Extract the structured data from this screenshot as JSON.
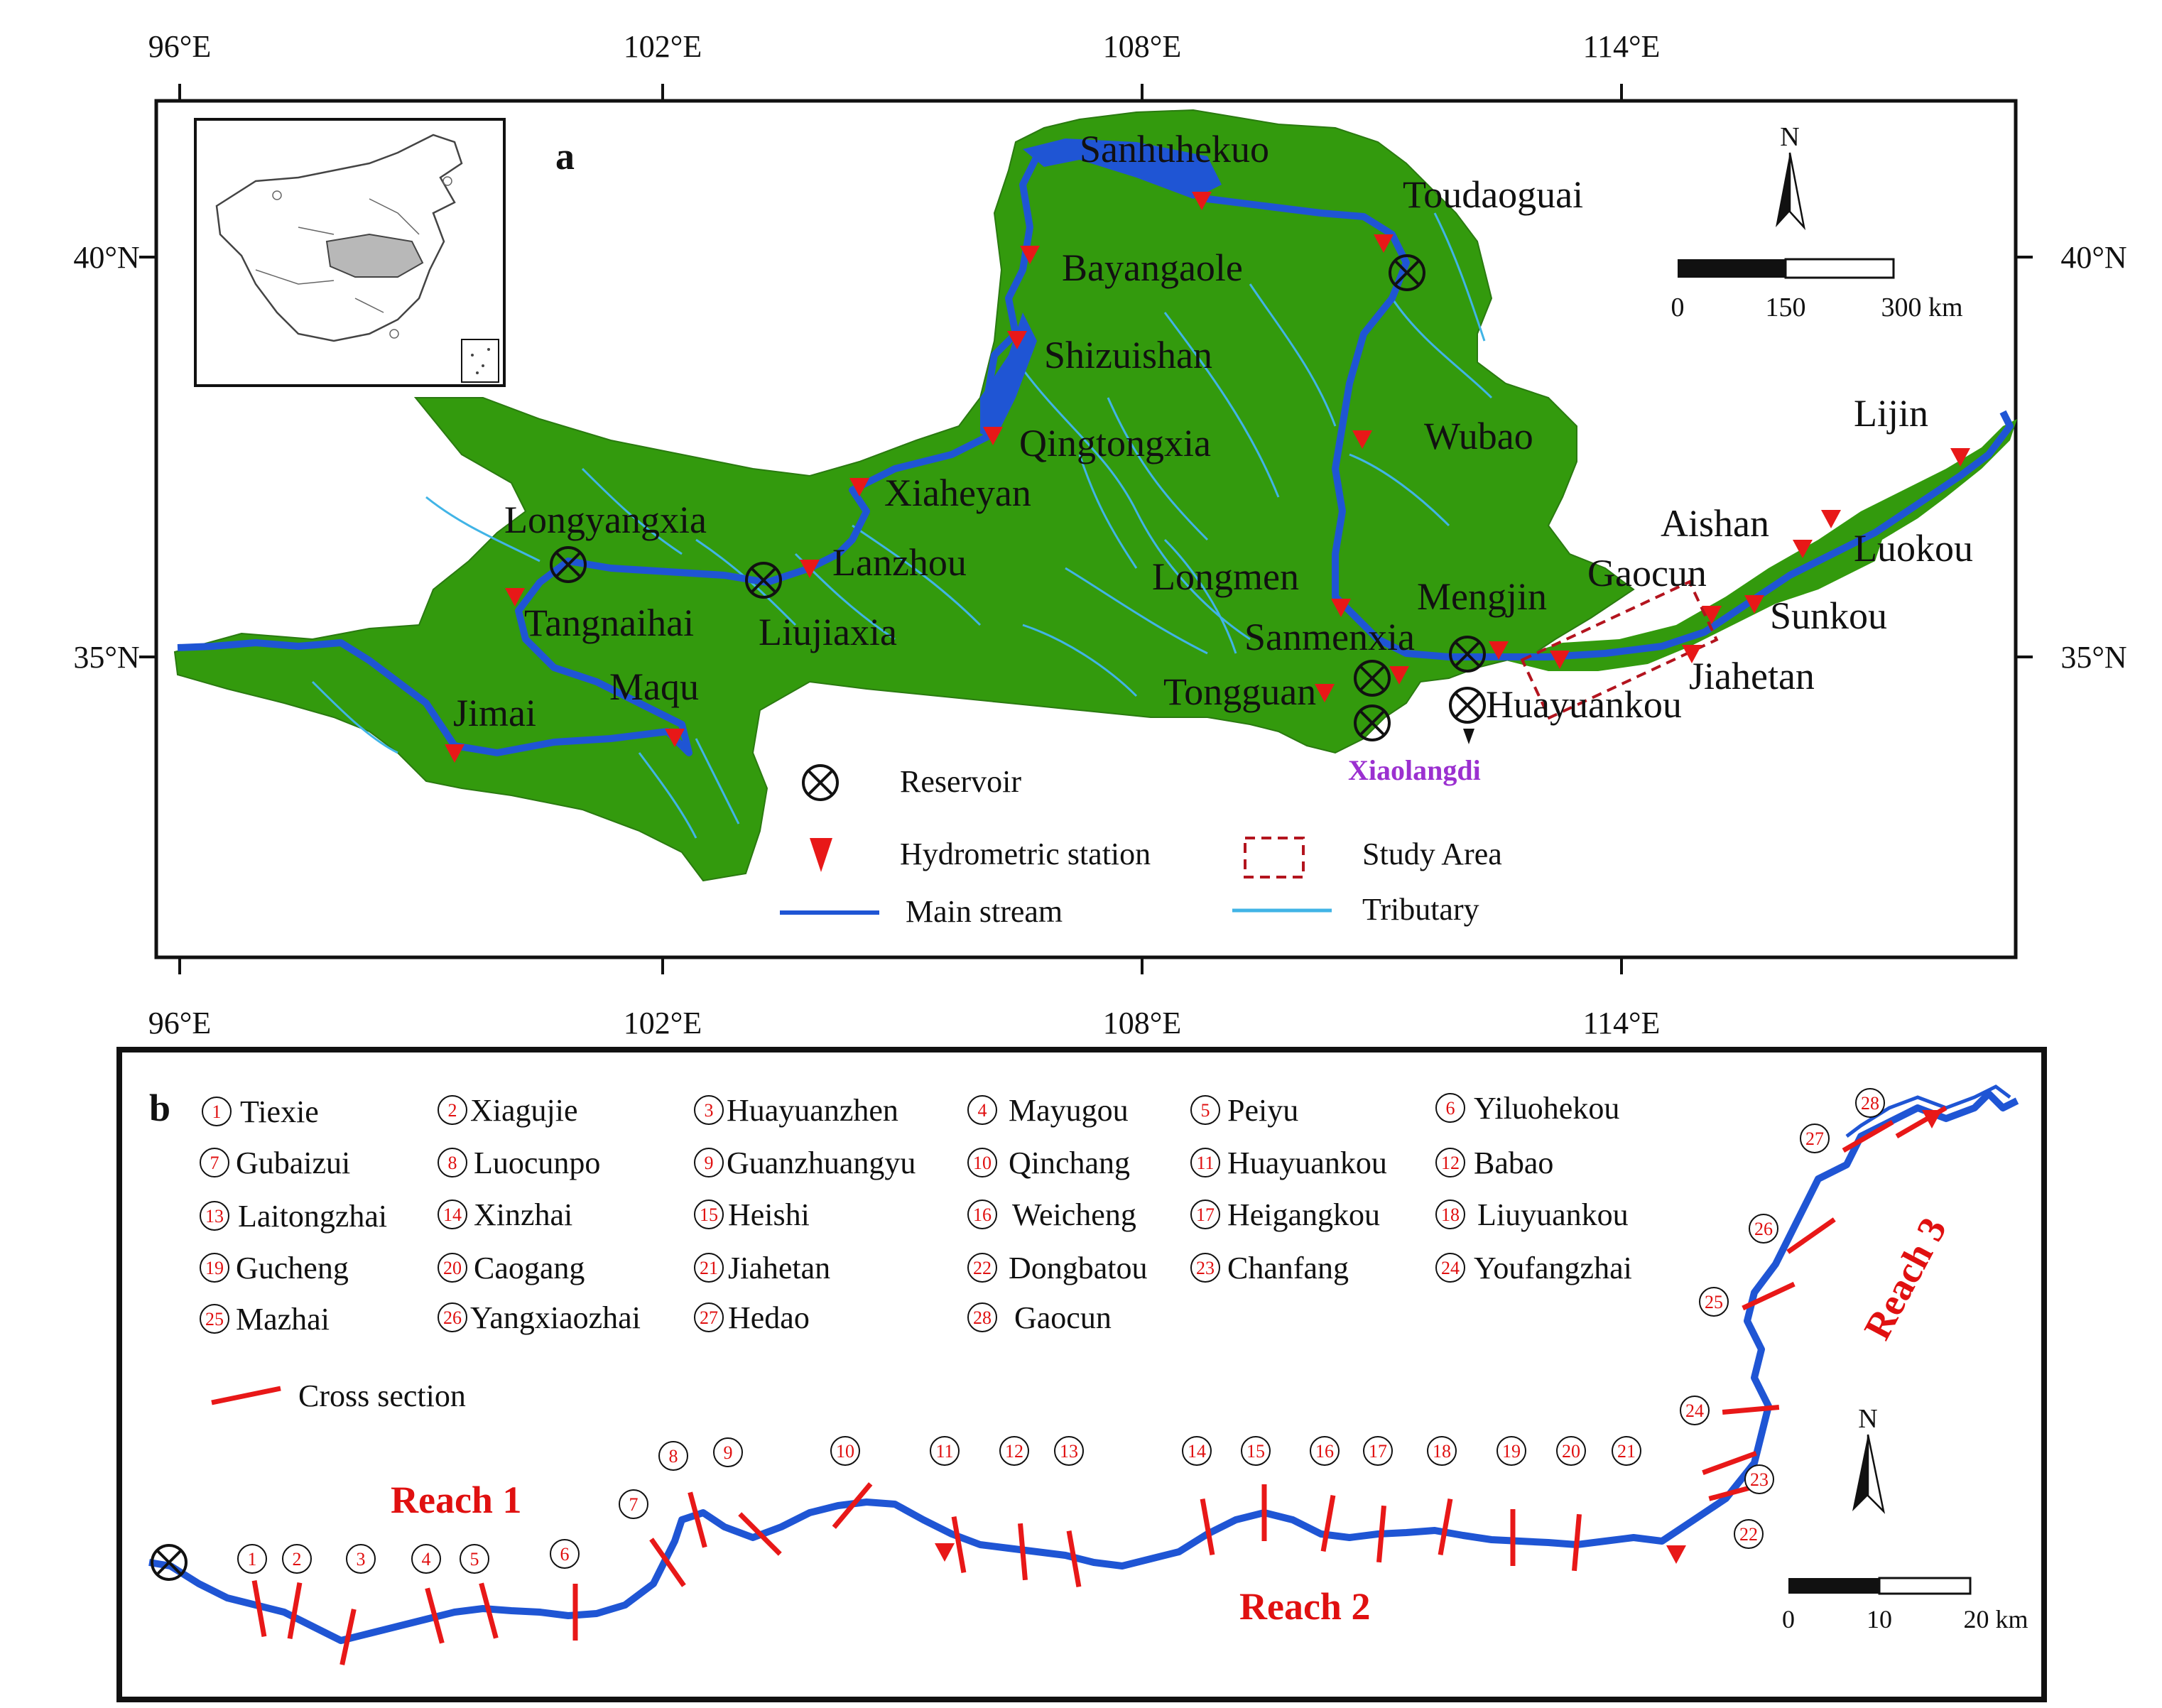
{
  "panel_a": {
    "letter": "a",
    "lon_labels": [
      "96°E",
      "102°E",
      "108°E",
      "114°E"
    ],
    "lat_labels": [
      "40°N",
      "35°N"
    ],
    "stations": {
      "sanhuhekuo": "Sanhuhekuo",
      "toudaoguai": "Toudaoguai",
      "bayangaole": "Bayangaole",
      "shizuishan": "Shizuishan",
      "qingtongxia": "Qingtongxia",
      "wubao": "Wubao",
      "xiaheyan": "Xiaheyan",
      "longyangxia": "Longyangxia",
      "lanzhou": "Lanzhou",
      "longmen": "Longmen",
      "tangnaihai": "Tangnaihai",
      "liujiaxia": "Liujiaxia",
      "mengjin": "Mengjin",
      "sanmenxia": "Sanmenxia",
      "tongguan": "Tongguan",
      "maqu": "Maqu",
      "jimai": "Jimai",
      "huayuankou": "Huayuankou",
      "xiaolangdi": "Xiaolangdi",
      "gaocun": "Gaocun",
      "aishan": "Aishan",
      "luokou": "Luokou",
      "sunkou": "Sunkou",
      "jiahetan": "Jiahetan",
      "lijin": "Lijin"
    },
    "north": "N",
    "scale": {
      "ticks": [
        "0",
        "150",
        "300 km"
      ]
    },
    "legend": {
      "reservoir": "Reservoir",
      "hydrometric": "Hydrometric station",
      "study_area": "Study Area",
      "main_stream": "Main stream",
      "tributary": "Tributary"
    },
    "colors": {
      "basin": "#339a0d",
      "main_stream": "#1f55d4",
      "tributary": "#41b4e6",
      "station": "#e81818",
      "study_area": "#b3141e"
    }
  },
  "panel_b": {
    "letter": "b",
    "sections": [
      {
        "num": "1",
        "name": "Tiexie"
      },
      {
        "num": "2",
        "name": "Xiagujie"
      },
      {
        "num": "3",
        "name": "Huayuanzhen"
      },
      {
        "num": "4",
        "name": "Mayugou"
      },
      {
        "num": "5",
        "name": "Peiyu"
      },
      {
        "num": "6",
        "name": "Yiluohekou"
      },
      {
        "num": "7",
        "name": "Gubaizui"
      },
      {
        "num": "8",
        "name": "Luocunpo"
      },
      {
        "num": "9",
        "name": "Guanzhuangyu"
      },
      {
        "num": "10",
        "name": "Qinchang"
      },
      {
        "num": "11",
        "name": "Huayuankou"
      },
      {
        "num": "12",
        "name": "Babao"
      },
      {
        "num": "13",
        "name": "Laitongzhai"
      },
      {
        "num": "14",
        "name": "Xinzhai"
      },
      {
        "num": "15",
        "name": "Heishi"
      },
      {
        "num": "16",
        "name": "Weicheng"
      },
      {
        "num": "17",
        "name": "Heigangkou"
      },
      {
        "num": "18",
        "name": "Liuyuankou"
      },
      {
        "num": "19",
        "name": "Gucheng"
      },
      {
        "num": "20",
        "name": "Caogang"
      },
      {
        "num": "21",
        "name": "Jiahetan"
      },
      {
        "num": "22",
        "name": "Dongbatou"
      },
      {
        "num": "23",
        "name": "Chanfang"
      },
      {
        "num": "24",
        "name": "Youfangzhai"
      },
      {
        "num": "25",
        "name": "Mazhai"
      },
      {
        "num": "26",
        "name": "Yangxiaozhai"
      },
      {
        "num": "27",
        "name": "Hedao"
      },
      {
        "num": "28",
        "name": "Gaocun"
      }
    ],
    "cross_section_label": "Cross section",
    "reaches": [
      "Reach 1",
      "Reach 2",
      "Reach 3"
    ],
    "north": "N",
    "scale": {
      "ticks": [
        "0",
        "10",
        "20 km"
      ]
    }
  }
}
